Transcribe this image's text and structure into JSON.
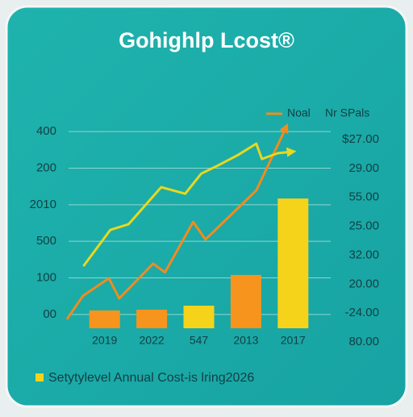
{
  "chart_data": {
    "type": "bar",
    "title": "Gohighlp Lcost®",
    "categories": [
      "2019",
      "2022",
      "547",
      "2013",
      "2017"
    ],
    "xlim": [
      -0.8,
      4.8
    ],
    "ylim": [
      -40,
      540
    ],
    "yticks": [
      {
        "value": 500,
        "label": "400"
      },
      {
        "value": 400,
        "label": "200"
      },
      {
        "value": 300,
        "label": "2010"
      },
      {
        "value": 200,
        "label": "500"
      },
      100,
      {
        "value": 0,
        "label": "00"
      }
    ],
    "y2lim": [
      0,
      7
    ],
    "y2ticks": [
      {
        "value": 7,
        "label": "$27.00"
      },
      {
        "value": 6,
        "label": "29.00"
      },
      {
        "value": 5,
        "label": "55.00"
      },
      {
        "value": 4,
        "label": "25.00"
      },
      {
        "value": 3,
        "label": "32.00"
      },
      {
        "value": 2,
        "label": "20.00"
      },
      {
        "value": 1,
        "label": "-24.00"
      },
      {
        "value": 0,
        "label": "80.00"
      }
    ],
    "grid": true,
    "series": [
      {
        "name": "Setytylevel Annual Cost-is lring2026",
        "type": "bar",
        "color": "#f5d31b",
        "colors": [
          "#f7941d",
          "#f7941d",
          "#f5d31b",
          "#f7941d",
          "#f5d31b"
        ],
        "values": [
          11,
          13,
          24,
          108,
          317
        ]
      },
      {
        "name": "Noal",
        "type": "line",
        "color": "#f08c1e",
        "x": [
          -0.8,
          -0.46,
          0.09,
          0.31,
          1.03,
          1.28,
          1.88,
          2.14,
          3.22,
          3.85
        ],
        "values": [
          -13,
          51,
          99,
          44,
          139,
          115,
          253,
          205,
          339,
          511
        ]
      },
      {
        "name": "Nr SPals",
        "type": "line",
        "color": "#e8d81e",
        "x": [
          -0.45,
          0.12,
          0.51,
          1.2,
          1.71,
          2.05,
          2.4,
          2.83,
          3.22,
          3.34,
          3.68,
          3.97
        ],
        "values": [
          132,
          231,
          247,
          348,
          330,
          385,
          407,
          436,
          467,
          425,
          441,
          445
        ]
      }
    ]
  }
}
